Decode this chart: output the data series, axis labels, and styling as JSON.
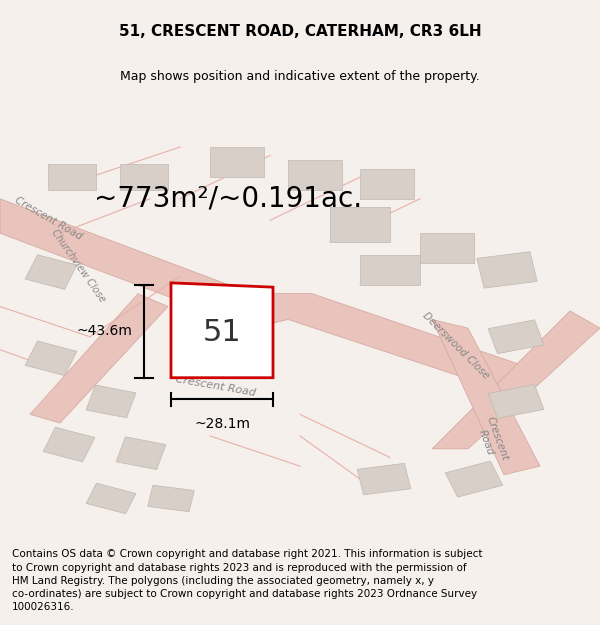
{
  "title": "51, CRESCENT ROAD, CATERHAM, CR3 6LH",
  "subtitle": "Map shows position and indicative extent of the property.",
  "area_text": "~773m²/~0.191ac.",
  "property_number": "51",
  "width_label": "~28.1m",
  "height_label": "~43.6m",
  "footer_lines": [
    "Contains OS data © Crown copyright and database right 2021. This information is subject",
    "to Crown copyright and database rights 2023 and is reproduced with the permission of",
    "HM Land Registry. The polygons (including the associated geometry, namely x, y",
    "co-ordinates) are subject to Crown copyright and database rights 2023 Ordnance Survey",
    "100026316."
  ],
  "map_bg_color": "#f5f0ec",
  "road_color": "#e8c4bc",
  "road_edge_color": "#d4a49c",
  "property_outline_color": "#cc0000",
  "title_fontsize": 11,
  "subtitle_fontsize": 9,
  "area_fontsize": 20,
  "footer_fontsize": 7.5,
  "road_label_color": "#888888",
  "buildings": [
    [
      0.55,
      0.7,
      0.1,
      0.08,
      0
    ],
    [
      0.6,
      0.8,
      0.09,
      0.07,
      0
    ],
    [
      0.48,
      0.82,
      0.09,
      0.07,
      0
    ],
    [
      0.35,
      0.85,
      0.09,
      0.07,
      0
    ],
    [
      0.2,
      0.82,
      0.08,
      0.06,
      0
    ],
    [
      0.08,
      0.82,
      0.08,
      0.06,
      0
    ],
    [
      0.05,
      0.6,
      0.07,
      0.06,
      -20
    ],
    [
      0.05,
      0.4,
      0.07,
      0.06,
      -20
    ],
    [
      0.08,
      0.2,
      0.07,
      0.06,
      -20
    ],
    [
      0.15,
      0.08,
      0.07,
      0.05,
      -20
    ],
    [
      0.25,
      0.08,
      0.07,
      0.05,
      -10
    ],
    [
      0.6,
      0.6,
      0.1,
      0.07,
      0
    ],
    [
      0.7,
      0.65,
      0.09,
      0.07,
      0
    ],
    [
      0.8,
      0.6,
      0.09,
      0.07,
      10
    ],
    [
      0.82,
      0.45,
      0.08,
      0.06,
      15
    ],
    [
      0.82,
      0.3,
      0.08,
      0.06,
      15
    ],
    [
      0.75,
      0.12,
      0.08,
      0.06,
      20
    ],
    [
      0.6,
      0.12,
      0.08,
      0.06,
      10
    ],
    [
      0.15,
      0.3,
      0.07,
      0.06,
      -15
    ],
    [
      0.2,
      0.18,
      0.07,
      0.06,
      -15
    ]
  ]
}
